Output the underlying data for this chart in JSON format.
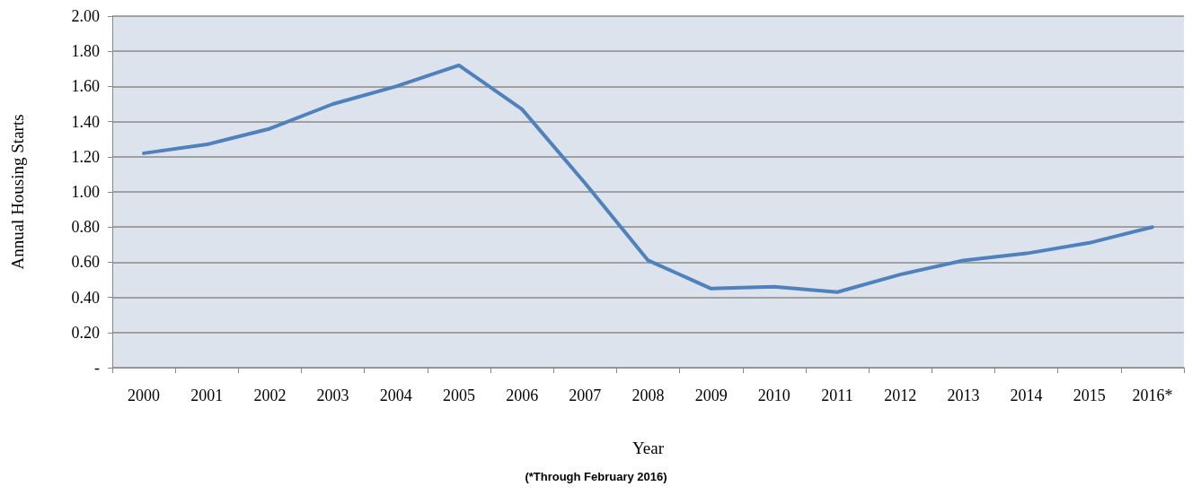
{
  "chart_data": {
    "type": "line",
    "xlabel": "Year",
    "ylabel": "Annual Housing Starts",
    "annotations": [
      "(*Through February 2016)"
    ],
    "categories": [
      "2000",
      "2001",
      "2002",
      "2003",
      "2004",
      "2005",
      "2006",
      "2007",
      "2008",
      "2009",
      "2010",
      "2011",
      "2012",
      "2013",
      "2014",
      "2015",
      "2016*"
    ],
    "series": [
      {
        "color": "#4f81bd",
        "values": [
          1.22,
          1.27,
          1.36,
          1.5,
          1.6,
          1.72,
          1.47,
          1.05,
          0.61,
          0.45,
          0.46,
          0.43,
          0.53,
          0.61,
          0.65,
          0.71,
          0.8
        ]
      }
    ],
    "ylim": [
      0,
      2
    ],
    "yticks": [
      {
        "value": 0,
        "label": "-"
      },
      {
        "value": 0.2,
        "label": "0.20"
      },
      {
        "value": 0.4,
        "label": "0.40"
      },
      {
        "value": 0.6,
        "label": "0.60"
      },
      {
        "value": 0.8,
        "label": "0.80"
      },
      {
        "value": 1,
        "label": "1.00"
      },
      {
        "value": 1.2,
        "label": "1.20"
      },
      {
        "value": 1.4,
        "label": "1.40"
      },
      {
        "value": 1.6,
        "label": "1.60"
      },
      {
        "value": 1.8,
        "label": "1.80"
      },
      {
        "value": 2,
        "label": "2.00"
      }
    ],
    "grid": "y",
    "marker": "none",
    "line_style": "solid"
  }
}
